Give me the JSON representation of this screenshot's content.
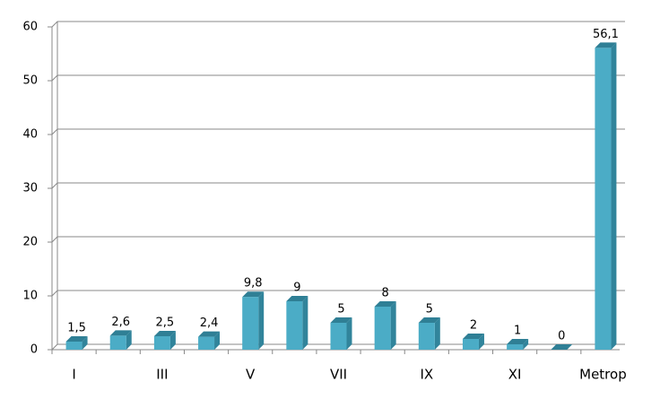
{
  "chart_data": {
    "type": "bar",
    "categories": [
      "I",
      null,
      "III",
      null,
      "V",
      null,
      "VII",
      null,
      "IX",
      null,
      "XI",
      null,
      "Metrop"
    ],
    "values": [
      1.5,
      2.6,
      2.5,
      2.4,
      9.8,
      9,
      5,
      8,
      5,
      2,
      1,
      0,
      56.1
    ],
    "value_labels": [
      "1,5",
      "2,6",
      "2,5",
      "2,4",
      "9,8",
      "9",
      "5",
      "8",
      "5",
      "2",
      "1",
      "0",
      "56,1"
    ],
    "color": "#4bacc6",
    "ylim": [
      0,
      60
    ],
    "yticks": [
      0,
      10,
      20,
      30,
      40,
      50,
      60
    ],
    "grid": true
  }
}
